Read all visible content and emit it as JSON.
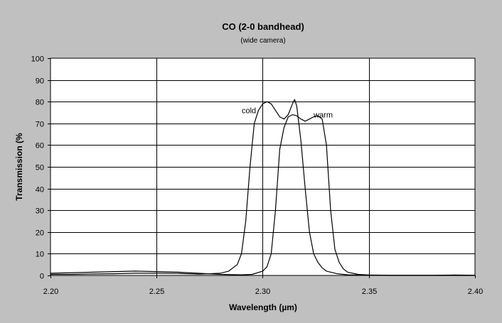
{
  "chart_data": {
    "type": "line",
    "title": "CO (2-0 bandhead)",
    "subtitle": "(wide camera)",
    "xlabel": "Wavelength (µm)",
    "ylabel": "Transmission (%",
    "xlim": [
      2.2,
      2.4
    ],
    "ylim": [
      0,
      100
    ],
    "x_ticks": [
      "2.20",
      "2.25",
      "2.30",
      "2.35",
      "2.40"
    ],
    "y_ticks": [
      "0",
      "10",
      "20",
      "30",
      "40",
      "50",
      "60",
      "70",
      "80",
      "90",
      "100"
    ],
    "x_major_gridlines": [
      2.25,
      2.3,
      2.35
    ],
    "grid": true,
    "annotations": [
      {
        "text": "cold",
        "x": 2.2935,
        "y": 76
      },
      {
        "text": "warm",
        "x": 2.3285,
        "y": 74
      }
    ],
    "series": [
      {
        "name": "cold",
        "x": [
          2.2,
          2.21,
          2.22,
          2.23,
          2.24,
          2.25,
          2.26,
          2.27,
          2.28,
          2.284,
          2.288,
          2.29,
          2.292,
          2.294,
          2.296,
          2.298,
          2.3,
          2.302,
          2.304,
          2.306,
          2.308,
          2.31,
          2.312,
          2.314,
          2.315,
          2.316,
          2.318,
          2.32,
          2.322,
          2.324,
          2.326,
          2.328,
          2.33,
          2.335,
          2.34,
          2.35,
          2.36,
          2.38,
          2.4
        ],
        "y": [
          0.5,
          0.5,
          0.7,
          0.8,
          1.0,
          1.0,
          0.9,
          0.6,
          1.0,
          2.0,
          5.0,
          10.0,
          25.0,
          50.0,
          70.0,
          76.0,
          79.0,
          80.0,
          79.0,
          76.0,
          73.0,
          72.0,
          74.0,
          79.0,
          81.0,
          78.0,
          62.0,
          40.0,
          20.0,
          10.0,
          6.0,
          3.5,
          2.0,
          0.8,
          0.3,
          0.1,
          0.0,
          0.0,
          0.0
        ]
      },
      {
        "name": "warm",
        "x": [
          2.2,
          2.22,
          2.24,
          2.26,
          2.28,
          2.29,
          2.295,
          2.3,
          2.302,
          2.304,
          2.306,
          2.308,
          2.31,
          2.312,
          2.314,
          2.316,
          2.318,
          2.32,
          2.322,
          2.324,
          2.326,
          2.328,
          2.33,
          2.332,
          2.334,
          2.336,
          2.338,
          2.34,
          2.345,
          2.35,
          2.36,
          2.38,
          2.39,
          2.4
        ],
        "y": [
          1.0,
          1.5,
          2.0,
          1.5,
          0.5,
          0.3,
          0.5,
          2.0,
          4.0,
          10.0,
          30.0,
          58.0,
          68.0,
          73.0,
          74.0,
          73.5,
          72.0,
          71.0,
          72.0,
          73.0,
          73.5,
          72.0,
          60.0,
          30.0,
          12.0,
          6.0,
          3.0,
          1.5,
          0.5,
          0.2,
          0.1,
          0.1,
          0.2,
          0.1
        ]
      }
    ]
  }
}
